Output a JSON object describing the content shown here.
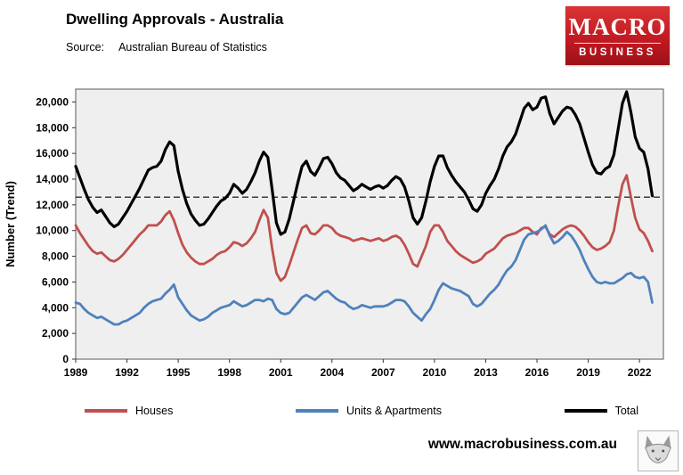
{
  "header": {
    "title": "Dwelling Approvals - Australia",
    "source_label": "Source:",
    "source_value": "Australian Bureau of Statistics"
  },
  "logo": {
    "line1": "MACRO",
    "line2": "BUSINESS",
    "bg": "#c01820"
  },
  "footer": {
    "website": "www.macrobusiness.com.au"
  },
  "chart_data": {
    "type": "line",
    "title": "Dwelling Approvals - Australia",
    "ylabel": "Number (Trend)",
    "ylim": [
      0,
      21000
    ],
    "xlim": [
      1989,
      2023.4
    ],
    "yticks": [
      0,
      2000,
      4000,
      6000,
      8000,
      10000,
      12000,
      14000,
      16000,
      18000,
      20000
    ],
    "xticks": [
      1989,
      1992,
      1995,
      1998,
      2001,
      2004,
      2007,
      2010,
      2013,
      2016,
      2019,
      2022
    ],
    "reference_line": 12600,
    "plot_bg": "#efefef",
    "grid": false,
    "legend_position": "bottom",
    "x_start": 1989,
    "x_step": 0.25,
    "series": [
      {
        "name": "Houses",
        "color": "#c0504d",
        "width": 2.8,
        "values": [
          10400,
          9800,
          9300,
          8800,
          8400,
          8200,
          8300,
          8000,
          7700,
          7600,
          7800,
          8100,
          8500,
          8900,
          9300,
          9700,
          10000,
          10400,
          10400,
          10400,
          10700,
          11200,
          11500,
          10800,
          9800,
          8900,
          8300,
          7900,
          7600,
          7400,
          7400,
          7600,
          7800,
          8100,
          8300,
          8400,
          8700,
          9100,
          9000,
          8800,
          9000,
          9400,
          9900,
          10800,
          11600,
          11000,
          8600,
          6700,
          6100,
          6400,
          7300,
          8300,
          9300,
          10200,
          10400,
          9800,
          9700,
          10000,
          10400,
          10400,
          10200,
          9800,
          9600,
          9500,
          9400,
          9200,
          9300,
          9400,
          9300,
          9200,
          9300,
          9400,
          9200,
          9300,
          9500,
          9600,
          9400,
          8900,
          8200,
          7400,
          7200,
          8000,
          8800,
          9900,
          10400,
          10400,
          9900,
          9200,
          8800,
          8400,
          8100,
          7900,
          7700,
          7500,
          7600,
          7800,
          8200,
          8400,
          8600,
          9000,
          9400,
          9600,
          9700,
          9800,
          10000,
          10200,
          10200,
          9900,
          9700,
          10200,
          10300,
          9700,
          9500,
          9800,
          10100,
          10300,
          10400,
          10300,
          10000,
          9600,
          9100,
          8700,
          8500,
          8600,
          8800,
          9100,
          10000,
          11900,
          13600,
          14300,
          12600,
          11000,
          10100,
          9800,
          9200,
          8400
        ]
      },
      {
        "name": "Units & Apartments",
        "color": "#4f81bd",
        "width": 2.8,
        "values": [
          4400,
          4300,
          3900,
          3600,
          3400,
          3200,
          3300,
          3100,
          2900,
          2700,
          2700,
          2900,
          3000,
          3200,
          3400,
          3600,
          4000,
          4300,
          4500,
          4600,
          4700,
          5100,
          5400,
          5800,
          4800,
          4300,
          3800,
          3400,
          3200,
          3000,
          3100,
          3300,
          3600,
          3800,
          4000,
          4100,
          4200,
          4500,
          4300,
          4100,
          4200,
          4400,
          4600,
          4600,
          4500,
          4700,
          4600,
          3900,
          3600,
          3500,
          3600,
          4000,
          4400,
          4800,
          5000,
          4800,
          4600,
          4900,
          5200,
          5300,
          5000,
          4700,
          4500,
          4400,
          4100,
          3900,
          4000,
          4200,
          4100,
          4000,
          4100,
          4100,
          4100,
          4200,
          4400,
          4600,
          4600,
          4500,
          4100,
          3600,
          3300,
          3000,
          3500,
          3900,
          4600,
          5400,
          5900,
          5700,
          5500,
          5400,
          5300,
          5100,
          4900,
          4300,
          4100,
          4300,
          4700,
          5100,
          5400,
          5800,
          6400,
          6900,
          7200,
          7700,
          8500,
          9300,
          9700,
          9800,
          9900,
          10100,
          10400,
          9600,
          9000,
          9200,
          9500,
          9900,
          9600,
          9100,
          8500,
          7700,
          7000,
          6400,
          6000,
          5900,
          6000,
          5900,
          5900,
          6100,
          6300,
          6600,
          6700,
          6400,
          6300,
          6400,
          6000,
          4400
        ]
      },
      {
        "name": "Total",
        "color": "#000000",
        "width": 3.2,
        "values": [
          15000,
          14100,
          13200,
          12400,
          11800,
          11400,
          11600,
          11100,
          10600,
          10300,
          10500,
          11000,
          11500,
          12100,
          12700,
          13300,
          14000,
          14700,
          14900,
          15000,
          15400,
          16300,
          16900,
          16600,
          14600,
          13200,
          12100,
          11300,
          10800,
          10400,
          10500,
          10900,
          11400,
          11900,
          12300,
          12500,
          12900,
          13600,
          13300,
          12900,
          13200,
          13800,
          14500,
          15400,
          16100,
          15700,
          13200,
          10600,
          9700,
          9900,
          10900,
          12300,
          13700,
          15000,
          15400,
          14600,
          14300,
          14900,
          15600,
          15700,
          15200,
          14500,
          14100,
          13900,
          13500,
          13100,
          13300,
          13600,
          13400,
          13200,
          13400,
          13500,
          13300,
          13500,
          13900,
          14200,
          14000,
          13400,
          12300,
          11000,
          10500,
          11000,
          12300,
          13800,
          15000,
          15800,
          15800,
          14900,
          14300,
          13800,
          13400,
          13000,
          12400,
          11700,
          11500,
          12000,
          12900,
          13500,
          14000,
          14800,
          15800,
          16500,
          16900,
          17500,
          18500,
          19500,
          19900,
          19400,
          19600,
          20300,
          20400,
          19100,
          18300,
          18800,
          19300,
          19600,
          19500,
          19000,
          18300,
          17200,
          16100,
          15100,
          14500,
          14400,
          14800,
          15000,
          15900,
          17900,
          19900,
          20800,
          19200,
          17300,
          16400,
          16100,
          14800,
          12700
        ]
      }
    ]
  }
}
